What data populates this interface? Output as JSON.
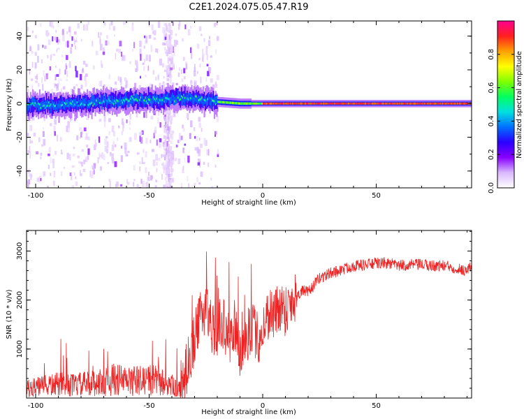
{
  "title": "C2E1.2024.075.05.47.R19",
  "chart_data": [
    {
      "type": "heatmap",
      "xlabel": "Height of straight line (km)",
      "ylabel": "Frequency (Hz)",
      "xlim": [
        -104,
        92
      ],
      "ylim": [
        -50,
        49
      ],
      "xticks": [
        -100,
        -50,
        0,
        50
      ],
      "yticks": [
        -40,
        -20,
        0,
        20,
        40
      ],
      "grid": false,
      "colorbar": {
        "label": "Normalized spectral amplitude",
        "range": [
          0,
          1
        ],
        "ticks": [
          "0.0",
          "0.2",
          "0.4",
          "0.6",
          "0.8"
        ],
        "colormap": [
          "#ffffff",
          "#d9b8ff",
          "#8800ff",
          "#2a00ff",
          "#0070ff",
          "#00e0e0",
          "#00ff60",
          "#80ff00",
          "#ffff00",
          "#ffa000",
          "#ff2020",
          "#ff0090"
        ]
      },
      "ridge": {
        "description_values_frequency_hz": [
          {
            "x": -104,
            "y": -1
          },
          {
            "x": -90,
            "y": -1
          },
          {
            "x": -80,
            "y": 0
          },
          {
            "x": -70,
            "y": 1
          },
          {
            "x": -60,
            "y": 2
          },
          {
            "x": -50,
            "y": 2
          },
          {
            "x": -40,
            "y": 3
          },
          {
            "x": -30,
            "y": 3
          },
          {
            "x": -20,
            "y": 1
          },
          {
            "x": -10,
            "y": 0
          },
          {
            "x": 0,
            "y": 0
          },
          {
            "x": 92,
            "y": 0
          }
        ]
      }
    },
    {
      "type": "line",
      "xlabel": "Height of straight line (km)",
      "ylabel": "SNR (10 * v/v)",
      "xlim": [
        -104,
        92
      ],
      "ylim": [
        0,
        3420
      ],
      "xticks": [
        -100,
        -50,
        0,
        50
      ],
      "yticks": [
        1000,
        2000,
        3000
      ],
      "grid": false,
      "line_color": "#ee2222",
      "series": [
        {
          "x": [
            -104,
            -100,
            -95,
            -90,
            -85,
            -80,
            -75,
            -70,
            -65,
            -60,
            -55,
            -50,
            -45,
            -40,
            -37,
            -35,
            -33,
            -30,
            -27,
            -25,
            -22,
            -20,
            -18,
            -15,
            -12,
            -10,
            -7,
            -5,
            -2,
            0,
            3,
            5,
            8,
            10,
            13,
            15,
            18,
            20,
            25,
            30,
            35,
            40,
            45,
            50,
            55,
            60,
            65,
            70,
            75,
            80,
            85,
            90,
            92
          ],
          "y": [
            200,
            220,
            250,
            280,
            260,
            280,
            300,
            330,
            380,
            350,
            350,
            380,
            330,
            260,
            140,
            300,
            700,
            1200,
            1700,
            1900,
            1400,
            1400,
            1600,
            1200,
            1400,
            900,
            1200,
            1500,
            1200,
            1400,
            1800,
            1700,
            1900,
            1800,
            2000,
            2100,
            2200,
            2150,
            2450,
            2550,
            2620,
            2700,
            2720,
            2750,
            2750,
            2700,
            2720,
            2720,
            2700,
            2700,
            2650,
            2600,
            2700
          ]
        }
      ]
    }
  ]
}
